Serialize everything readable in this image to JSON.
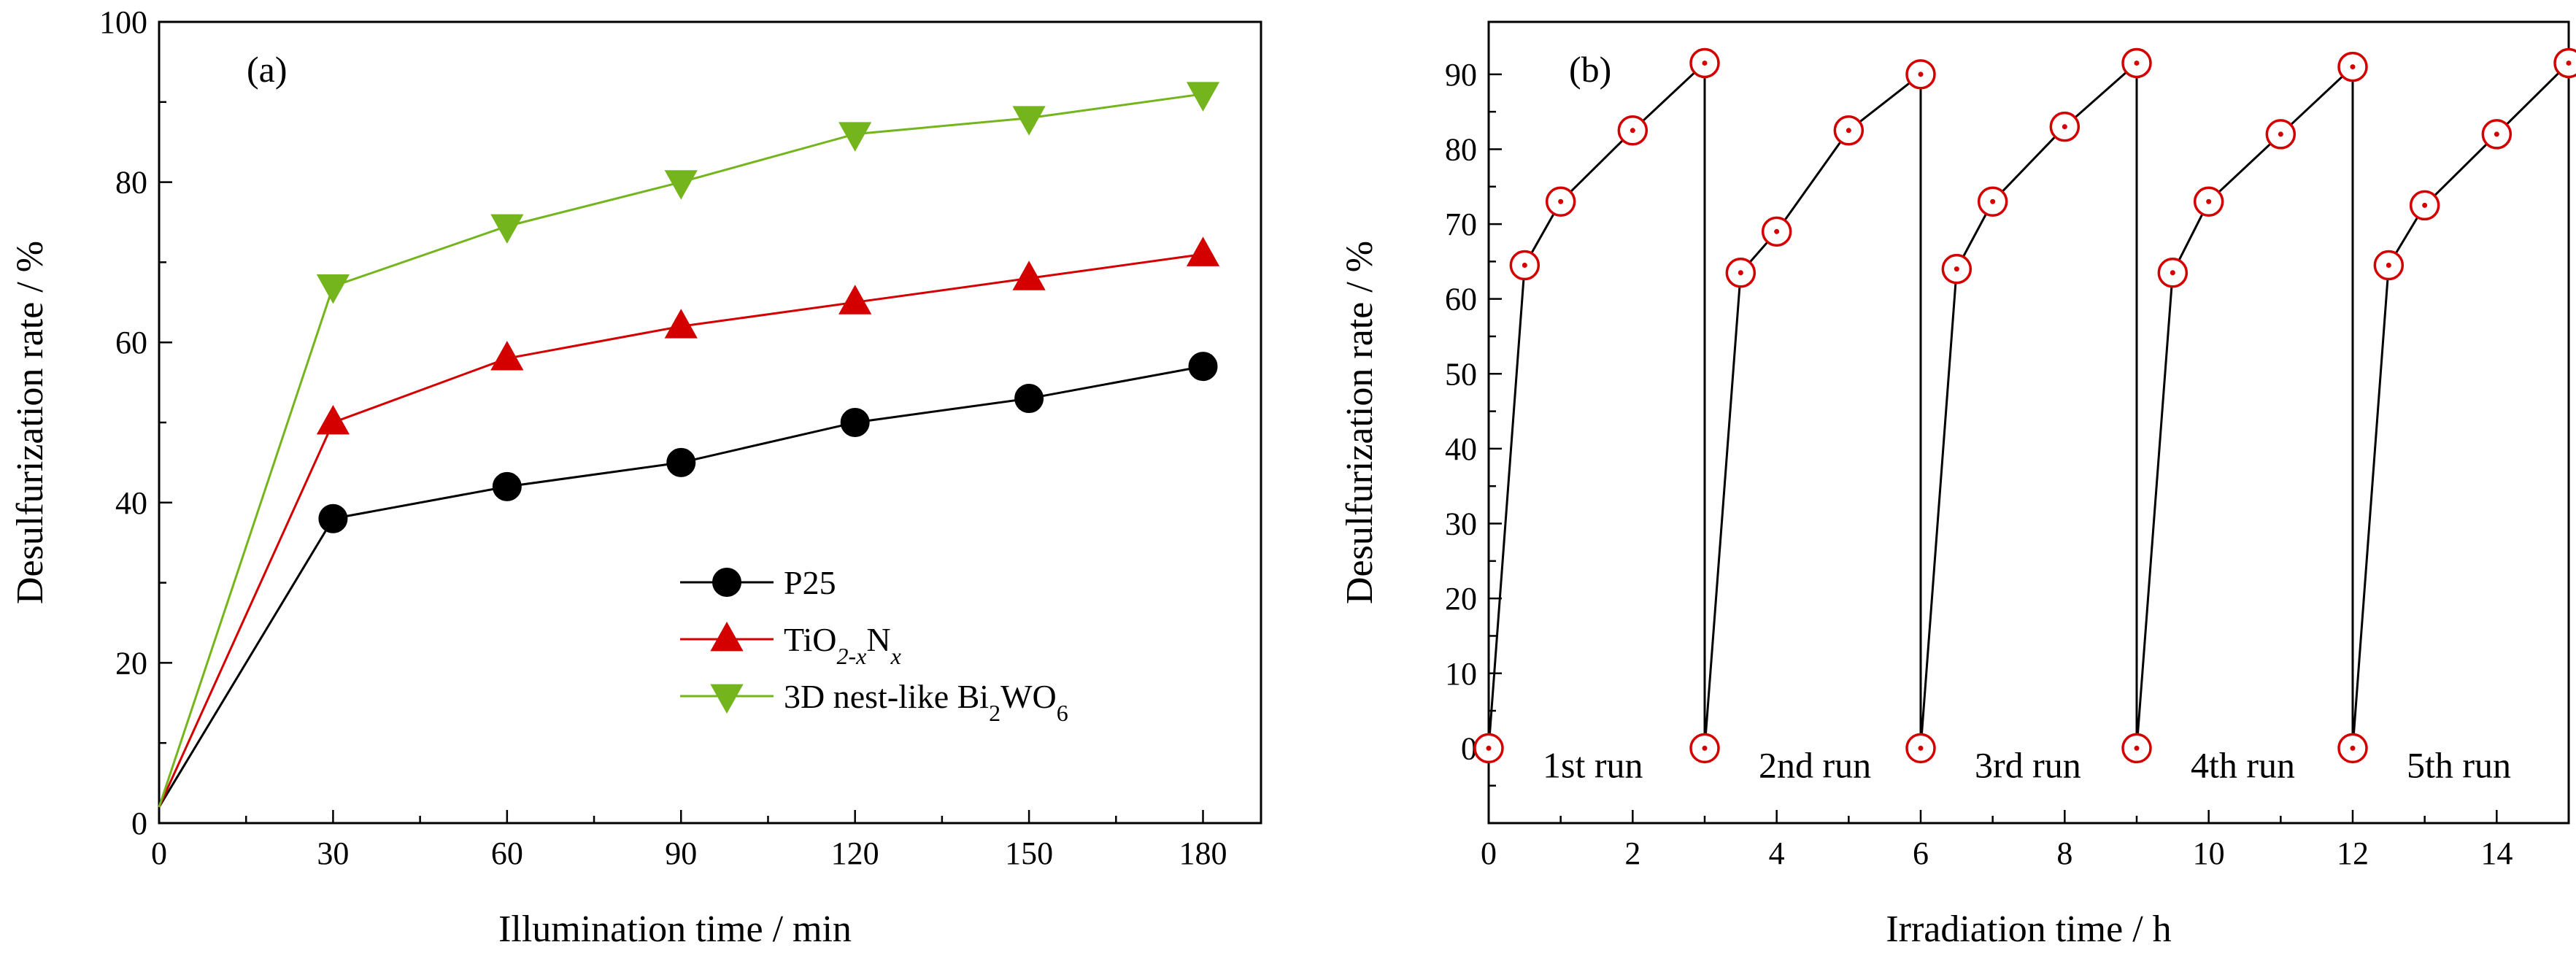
{
  "chart_data": [
    {
      "type": "line",
      "panel_label": "(a)",
      "xlabel": "Illumination time / min",
      "ylabel": "Desulfurization rate / %",
      "xlim": [
        0,
        190
      ],
      "ylim": [
        0,
        100
      ],
      "xticks": [
        0,
        30,
        60,
        90,
        120,
        150,
        180
      ],
      "yticks": [
        0,
        20,
        40,
        60,
        80,
        100
      ],
      "grid": false,
      "legend_position": "lower-right",
      "x": [
        0,
        30,
        60,
        90,
        120,
        150,
        180
      ],
      "series": [
        {
          "name": "P25",
          "legend_base": "P25",
          "legend_sub": "",
          "legend_mid": "",
          "legend_sub2": "",
          "marker": "circle",
          "color": "#000000",
          "line_color": "#000000",
          "values": [
            2,
            38,
            42,
            45,
            50,
            53,
            57
          ]
        },
        {
          "name": "TiO2-xNx",
          "legend_base": "TiO",
          "legend_sub": "2-x",
          "legend_mid": "N",
          "legend_sub2": "x",
          "marker": "triangle-up",
          "color": "#d40000",
          "line_color": "#d40000",
          "values": [
            2,
            50,
            58,
            62,
            65,
            68,
            71
          ]
        },
        {
          "name": "3D nest-like Bi2WO6",
          "legend_base": "3D nest-like Bi",
          "legend_sub": "2",
          "legend_mid": "WO",
          "legend_sub2": "6",
          "marker": "triangle-down",
          "color": "#74b51e",
          "line_color": "#74b51e",
          "values": [
            2,
            67,
            74.5,
            80,
            86,
            88,
            91
          ]
        }
      ]
    },
    {
      "type": "line",
      "panel_label": "(b)",
      "xlabel": "Irradiation time / h",
      "ylabel": "Desulfurization rate / %",
      "xlim": [
        0,
        15
      ],
      "ylim": [
        -10,
        97
      ],
      "xticks": [
        0,
        2,
        4,
        6,
        8,
        10,
        12,
        14
      ],
      "yticks": [
        0,
        10,
        20,
        30,
        40,
        50,
        60,
        70,
        80,
        90
      ],
      "grid": false,
      "marker": "circle-dot",
      "marker_color": "#d40000",
      "line_color": "#000000",
      "runs": [
        {
          "label": "1st run",
          "x": [
            0,
            0.5,
            1,
            2,
            3
          ],
          "y": [
            0,
            64.5,
            73,
            82.5,
            91.5
          ]
        },
        {
          "label": "2nd run",
          "x": [
            3,
            3.5,
            4,
            5,
            6
          ],
          "y": [
            0,
            63.5,
            69,
            82.5,
            90
          ]
        },
        {
          "label": "3rd run",
          "x": [
            6,
            6.5,
            7,
            8,
            9
          ],
          "y": [
            0,
            64,
            73,
            83,
            91.5
          ]
        },
        {
          "label": "4th run",
          "x": [
            9,
            9.5,
            10,
            11,
            12
          ],
          "y": [
            0,
            63.5,
            73,
            82,
            91
          ]
        },
        {
          "label": "5th run",
          "x": [
            12,
            12.5,
            13,
            14,
            15
          ],
          "y": [
            0,
            64.5,
            72.5,
            82,
            91.5
          ]
        }
      ]
    }
  ]
}
